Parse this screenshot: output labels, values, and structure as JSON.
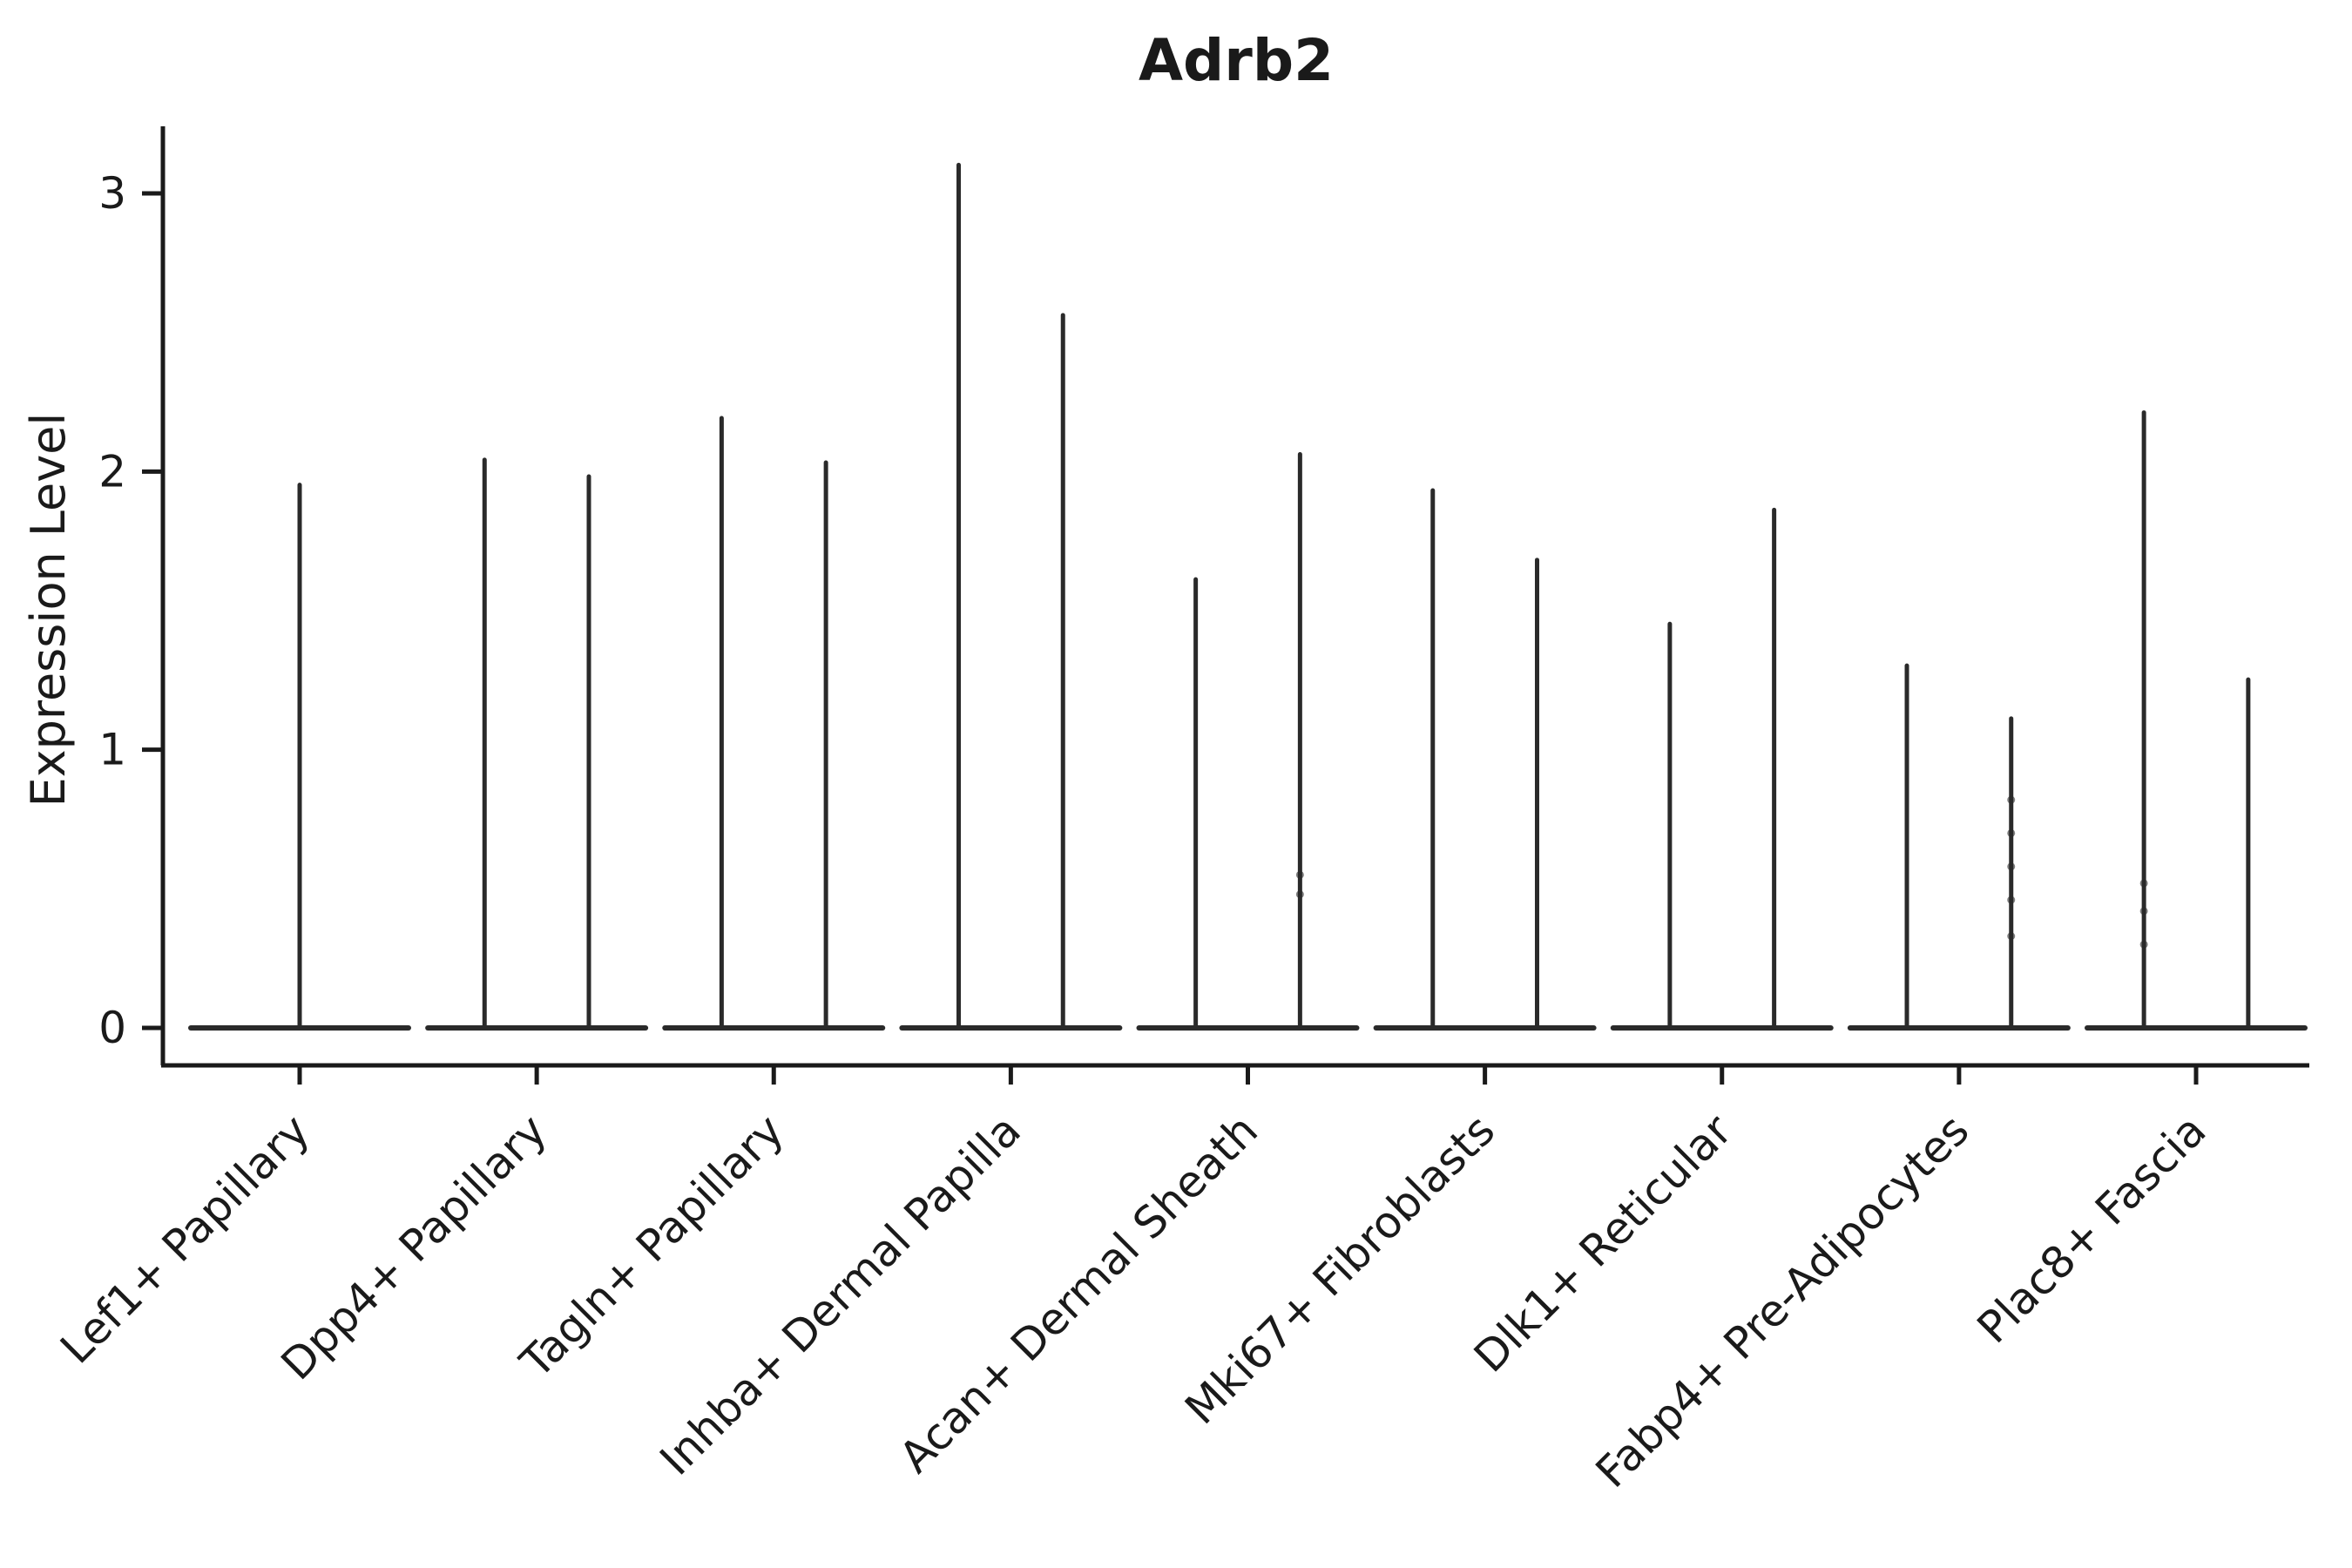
{
  "chart_data": {
    "type": "violin",
    "title": "Adrb2",
    "xlabel": "",
    "ylabel": "Expression Level",
    "ylim": [
      0,
      3.24
    ],
    "yticks": [
      "0",
      "1",
      "2",
      "3"
    ],
    "grid": false,
    "legend": null,
    "ink_color": "#2a2a2a",
    "axis_color": "#1a1a1a",
    "categories": [
      "Lef1+ Papillary",
      "Dpp4+ Papillary",
      "Tagln+ Papillary",
      "Inhba+ Dermal Papilla",
      "Acan+ Dermal Sheath",
      "Mki67+ Fibroblasts",
      "Dlk1+ Reticular",
      "Fabp4+ Pre-Adipocytes",
      "Plac8+ Fascia"
    ],
    "violins": [
      {
        "category": "Lef1+ Papillary",
        "spikes": [
          {
            "offset": 0.0,
            "max": 1.96,
            "dots": []
          }
        ]
      },
      {
        "category": "Dpp4+ Papillary",
        "spikes": [
          {
            "offset": -0.22,
            "max": 2.05,
            "dots": []
          },
          {
            "offset": 0.22,
            "max": 1.99,
            "dots": []
          }
        ]
      },
      {
        "category": "Tagln+ Papillary",
        "spikes": [
          {
            "offset": -0.22,
            "max": 2.2,
            "dots": []
          },
          {
            "offset": 0.22,
            "max": 2.04,
            "dots": []
          }
        ]
      },
      {
        "category": "Inhba+ Dermal Papilla",
        "spikes": [
          {
            "offset": -0.22,
            "max": 3.11,
            "dots": []
          },
          {
            "offset": 0.22,
            "max": 2.57,
            "dots": []
          }
        ]
      },
      {
        "category": "Acan+ Dermal Sheath",
        "spikes": [
          {
            "offset": -0.22,
            "max": 1.62,
            "dots": []
          },
          {
            "offset": 0.22,
            "max": 2.07,
            "dots": [
              0.48,
              0.55
            ]
          }
        ]
      },
      {
        "category": "Mki67+ Fibroblasts",
        "spikes": [
          {
            "offset": -0.22,
            "max": 1.94,
            "dots": []
          },
          {
            "offset": 0.22,
            "max": 1.69,
            "dots": []
          }
        ]
      },
      {
        "category": "Dlk1+ Reticular",
        "spikes": [
          {
            "offset": -0.22,
            "max": 1.46,
            "dots": []
          },
          {
            "offset": 0.22,
            "max": 1.87,
            "dots": []
          }
        ]
      },
      {
        "category": "Fabp4+ Pre-Adipocytes",
        "spikes": [
          {
            "offset": -0.22,
            "max": 1.31,
            "dots": []
          },
          {
            "offset": 0.22,
            "max": 1.12,
            "dots": [
              0.33,
              0.46,
              0.58,
              0.7,
              0.82
            ]
          }
        ]
      },
      {
        "category": "Plac8+ Fascia",
        "spikes": [
          {
            "offset": -0.22,
            "max": 2.22,
            "dots": [
              0.3,
              0.42,
              0.52
            ]
          },
          {
            "offset": 0.22,
            "max": 1.26,
            "dots": []
          }
        ]
      }
    ]
  }
}
